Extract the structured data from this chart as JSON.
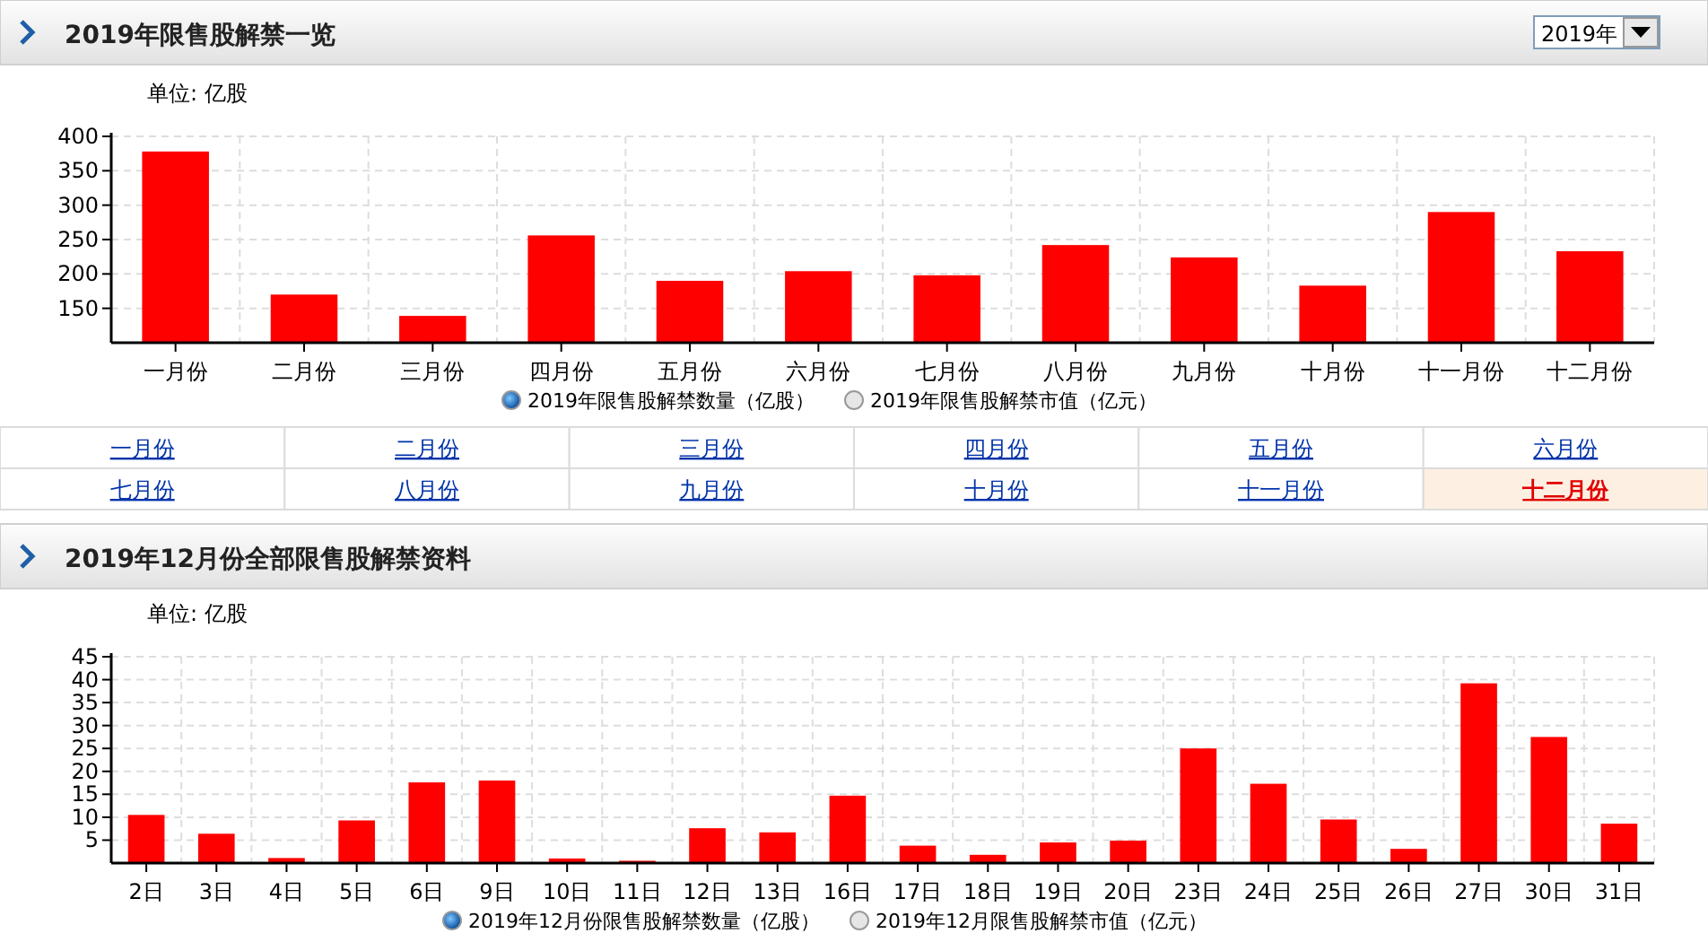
{
  "chart_data": [
    {
      "type": "bar",
      "title": "2019年限售股解禁一览",
      "ylabel": "单位: 亿股",
      "categories": [
        "一月份",
        "二月份",
        "三月份",
        "四月份",
        "五月份",
        "六月份",
        "七月份",
        "八月份",
        "九月份",
        "十月份",
        "十一月份",
        "十二月份"
      ],
      "series": [
        {
          "name": "2019年限售股解禁数量（亿股）",
          "color": "#ff0000",
          "values": [
            378,
            170,
            139,
            256,
            190,
            204,
            198,
            242,
            224,
            183,
            290,
            233
          ]
        }
      ],
      "ylim": [
        100,
        400
      ],
      "yticks": [
        150,
        200,
        250,
        300,
        350,
        400
      ],
      "grid": true,
      "legend": "bottom",
      "annotations": [
        "2019年",
        "2019年限售股解禁市值（亿元）",
        "一月份",
        "二月份",
        "三月份",
        "四月份",
        "五月份",
        "六月份",
        "七月份",
        "八月份",
        "九月份",
        "十月份",
        "十一月份",
        "十二月份"
      ]
    },
    {
      "type": "bar",
      "title": "2019年12月份全部限售股解禁资料",
      "ylabel": "单位: 亿股",
      "categories": [
        "2日",
        "3日",
        "4日",
        "5日",
        "6日",
        "9日",
        "10日",
        "11日",
        "12日",
        "13日",
        "16日",
        "17日",
        "18日",
        "19日",
        "20日",
        "23日",
        "24日",
        "25日",
        "26日",
        "27日",
        "30日",
        "31日"
      ],
      "series": [
        {
          "name": "2019年12月份限售股解禁数量（亿股）",
          "color": "#ff0000",
          "values": [
            10.5,
            6.4,
            1.1,
            9.3,
            17.6,
            18.0,
            1.0,
            0.5,
            7.6,
            6.7,
            14.7,
            3.8,
            1.8,
            4.5,
            4.9,
            25.0,
            17.3,
            9.5,
            3.1,
            39.2,
            27.5,
            8.6
          ]
        }
      ],
      "ylim": [
        0,
        45
      ],
      "yticks": [
        5,
        10,
        15,
        20,
        25,
        30,
        35,
        40,
        45
      ],
      "grid": true,
      "legend": "bottom",
      "annotations": [
        "2019年12月限售股解禁市值（亿元）"
      ]
    }
  ]
}
